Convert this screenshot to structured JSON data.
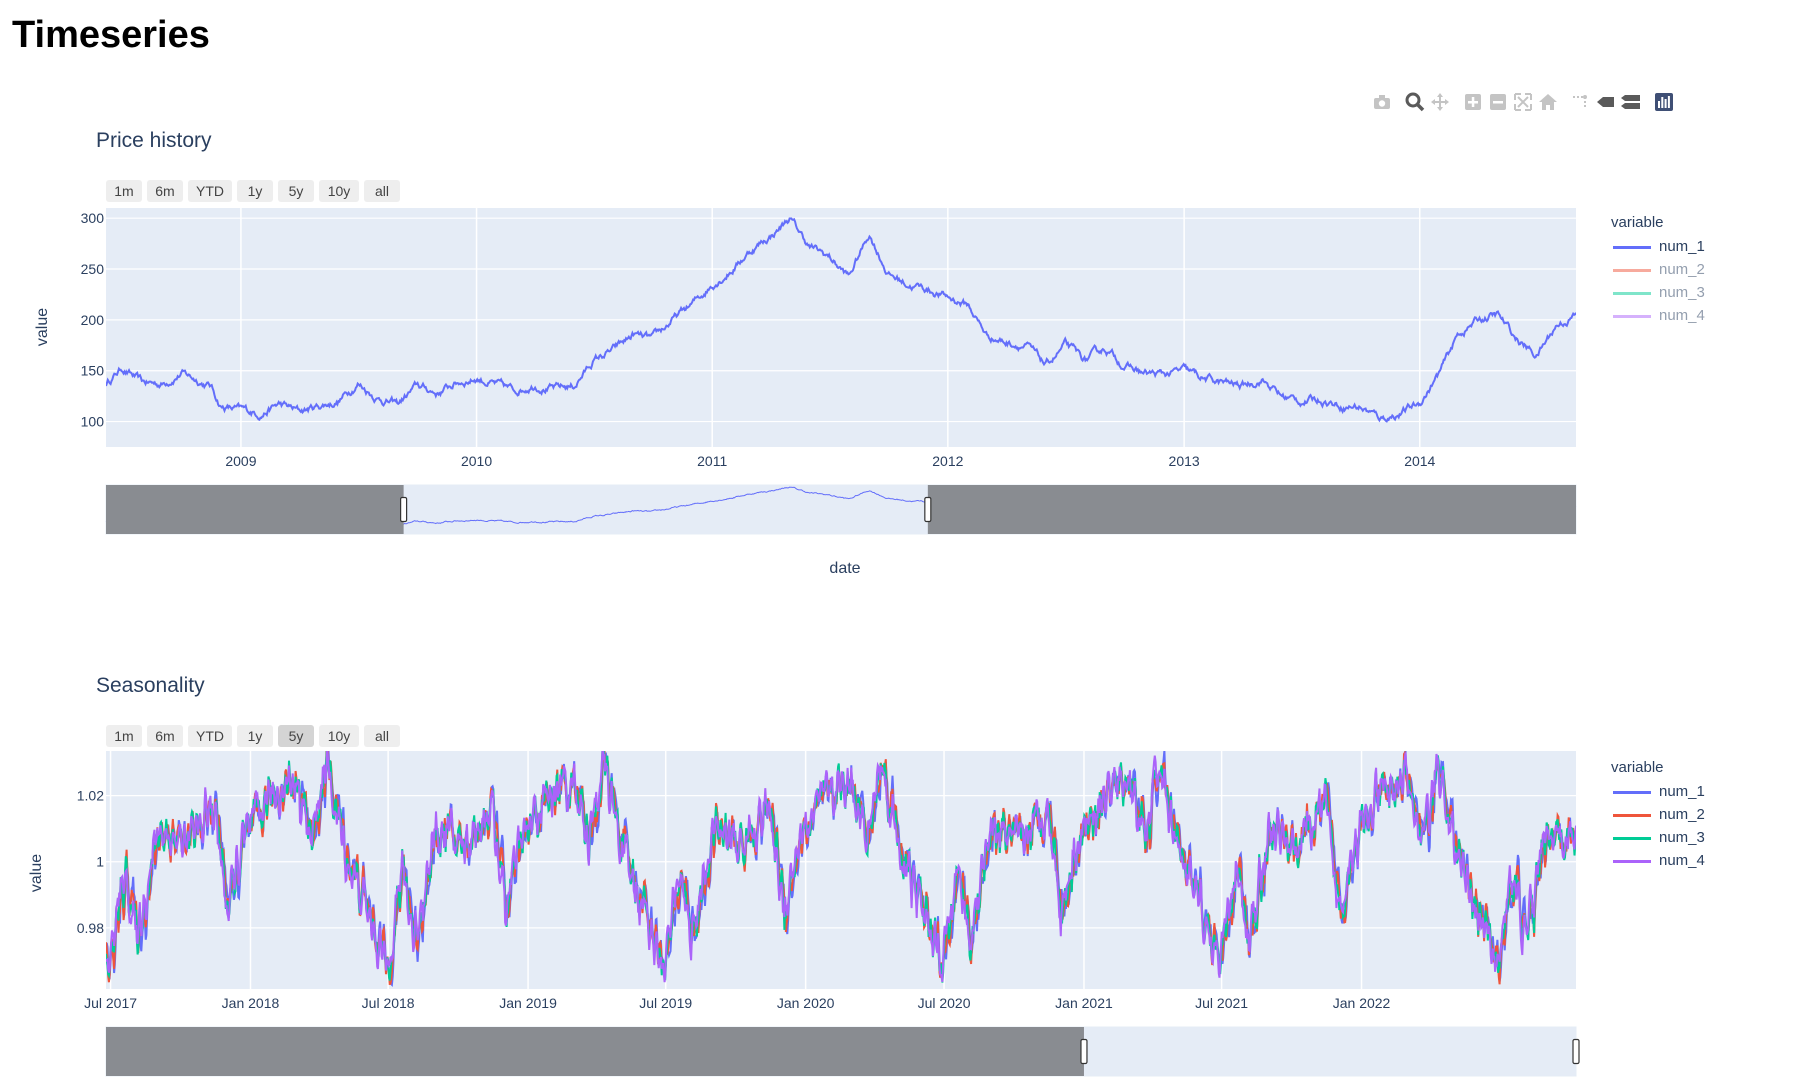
{
  "page": {
    "title": "Timeseries"
  },
  "modebar": {
    "icons": [
      "camera-icon",
      "zoom-icon",
      "pan-icon",
      "zoom-in-icon",
      "zoom-out-icon",
      "autoscale-icon",
      "reset-axes-icon",
      "spike-lines-icon",
      "hover-closest-icon",
      "hover-compare-icon",
      "plotly-logo-icon"
    ]
  },
  "colors": {
    "num_1": "#636efa",
    "num_2": "#EF553B",
    "num_3": "#00cc96",
    "num_4": "#ab63fa",
    "plot_bg": "#e5ecf6",
    "text": "#2a3f5f",
    "slider_mask": "#898c91"
  },
  "range_selector": [
    "1m",
    "6m",
    "YTD",
    "1y",
    "5y",
    "10y",
    "all"
  ],
  "chart_data": [
    {
      "type": "line",
      "title": "Price history",
      "xlabel": "date",
      "ylabel": "value",
      "ylim": [
        75,
        310
      ],
      "xlim": [
        "2008-06-06",
        "2014-08-31"
      ],
      "x_ticks": [
        "2009",
        "2010",
        "2011",
        "2012",
        "2013",
        "2014"
      ],
      "y_ticks": [
        100,
        150,
        200,
        250,
        300
      ],
      "grid": true,
      "legend": {
        "title": "variable",
        "placement": "right",
        "items": [
          "num_1",
          "num_2",
          "num_3",
          "num_4"
        ],
        "hidden": [
          "num_2",
          "num_3",
          "num_4"
        ]
      },
      "active_range_button": "",
      "rangeslider": {
        "visible": true,
        "selection": [
          "2009-09-10",
          "2011-12-01"
        ]
      },
      "series": [
        {
          "name": "num_1",
          "color": "#636efa",
          "points": [
            [
              "2008-06-06",
              137
            ],
            [
              "2008-07-01",
              153
            ],
            [
              "2008-08-01",
              138
            ],
            [
              "2008-09-01",
              137
            ],
            [
              "2008-10-01",
              148
            ],
            [
              "2008-11-15",
              135
            ],
            [
              "2008-12-01",
              115
            ],
            [
              "2009-01-01",
              111
            ],
            [
              "2009-02-01",
              108
            ],
            [
              "2009-03-01",
              117
            ],
            [
              "2009-04-01",
              110
            ],
            [
              "2009-05-01",
              115
            ],
            [
              "2009-06-01",
              120
            ],
            [
              "2009-07-01",
              138
            ],
            [
              "2009-08-01",
              123
            ],
            [
              "2009-09-01",
              117
            ],
            [
              "2009-10-01",
              135
            ],
            [
              "2009-11-01",
              128
            ],
            [
              "2009-12-01",
              138
            ],
            [
              "2010-01-01",
              143
            ],
            [
              "2010-02-01",
              136
            ],
            [
              "2010-03-01",
              130
            ],
            [
              "2010-04-01",
              137
            ],
            [
              "2010-05-01",
              132
            ],
            [
              "2010-06-01",
              135
            ],
            [
              "2010-07-01",
              160
            ],
            [
              "2010-08-01",
              170
            ],
            [
              "2010-09-01",
              185
            ],
            [
              "2010-10-01",
              180
            ],
            [
              "2010-11-01",
              200
            ],
            [
              "2010-12-01",
              215
            ],
            [
              "2011-01-01",
              235
            ],
            [
              "2011-02-01",
              250
            ],
            [
              "2011-03-01",
              268
            ],
            [
              "2011-04-01",
              282
            ],
            [
              "2011-05-01",
              300
            ],
            [
              "2011-06-01",
              272
            ],
            [
              "2011-07-01",
              262
            ],
            [
              "2011-08-01",
              242
            ],
            [
              "2011-09-01",
              285
            ],
            [
              "2011-10-01",
              245
            ],
            [
              "2011-11-01",
              235
            ],
            [
              "2011-12-01",
              230
            ],
            [
              "2012-01-01",
              222
            ],
            [
              "2012-02-01",
              215
            ],
            [
              "2012-03-01",
              185
            ],
            [
              "2012-04-01",
              178
            ],
            [
              "2012-05-01",
              175
            ],
            [
              "2012-06-01",
              155
            ],
            [
              "2012-07-01",
              175
            ],
            [
              "2012-08-01",
              160
            ],
            [
              "2012-09-01",
              172
            ],
            [
              "2012-10-01",
              155
            ],
            [
              "2012-11-01",
              147
            ],
            [
              "2012-12-01",
              146
            ],
            [
              "2013-01-01",
              150
            ],
            [
              "2013-02-01",
              142
            ],
            [
              "2013-03-01",
              138
            ],
            [
              "2013-04-01",
              135
            ],
            [
              "2013-05-01",
              142
            ],
            [
              "2013-06-01",
              125
            ],
            [
              "2013-07-01",
              120
            ],
            [
              "2013-08-01",
              122
            ],
            [
              "2013-09-01",
              116
            ],
            [
              "2013-10-01",
              115
            ],
            [
              "2013-11-01",
              103
            ],
            [
              "2013-12-01",
              108
            ],
            [
              "2014-01-01",
              118
            ],
            [
              "2014-02-01",
              148
            ],
            [
              "2014-03-01",
              185
            ],
            [
              "2014-04-01",
              200
            ],
            [
              "2014-05-01",
              205
            ],
            [
              "2014-06-01",
              180
            ],
            [
              "2014-07-01",
              165
            ],
            [
              "2014-08-01",
              195
            ],
            [
              "2014-08-31",
              205
            ]
          ]
        }
      ]
    },
    {
      "type": "line",
      "title": "Seasonality",
      "xlabel": "",
      "ylabel": "value",
      "ylim": [
        0.9615,
        1.0335
      ],
      "xlim": [
        "2017-06-25",
        "2022-10-10"
      ],
      "x_ticks": [
        "Jul 2017",
        "Jan 2018",
        "Jul 2018",
        "Jan 2019",
        "Jul 2019",
        "Jan 2020",
        "Jul 2020",
        "Jan 2021",
        "Jul 2021",
        "Jan 2022"
      ],
      "y_ticks": [
        "0.98",
        "1",
        "1.02"
      ],
      "grid": true,
      "legend": {
        "title": "variable",
        "placement": "right",
        "items": [
          "num_1",
          "num_2",
          "num_3",
          "num_4"
        ],
        "hidden": []
      },
      "active_range_button": "5y",
      "rangeslider": {
        "visible": true,
        "selection": [
          "2021-01-01",
          "2022-10-10"
        ]
      },
      "pattern": {
        "cycle": [
          "Jul",
          "Jan"
        ],
        "keypoints": [
          [
            0,
            0.973
          ],
          [
            0.02,
            0.968
          ],
          [
            0.08,
            0.998
          ],
          [
            0.12,
            0.976
          ],
          [
            0.2,
            1.01
          ],
          [
            0.3,
            1.005
          ],
          [
            0.4,
            1.017
          ],
          [
            0.45,
            0.985
          ],
          [
            0.5,
            1.005
          ],
          [
            0.6,
            1.02
          ],
          [
            0.7,
            1.025
          ],
          [
            0.75,
            1.005
          ],
          [
            0.8,
            1.03
          ],
          [
            0.88,
            1.0
          ],
          [
            0.94,
            0.988
          ],
          [
            1.0,
            0.973
          ]
        ],
        "range": [
          0.966,
          1.031
        ]
      },
      "series": [
        {
          "name": "num_1",
          "color": "#636efa"
        },
        {
          "name": "num_2",
          "color": "#EF553B"
        },
        {
          "name": "num_3",
          "color": "#00cc96"
        },
        {
          "name": "num_4",
          "color": "#ab63fa"
        }
      ]
    }
  ]
}
